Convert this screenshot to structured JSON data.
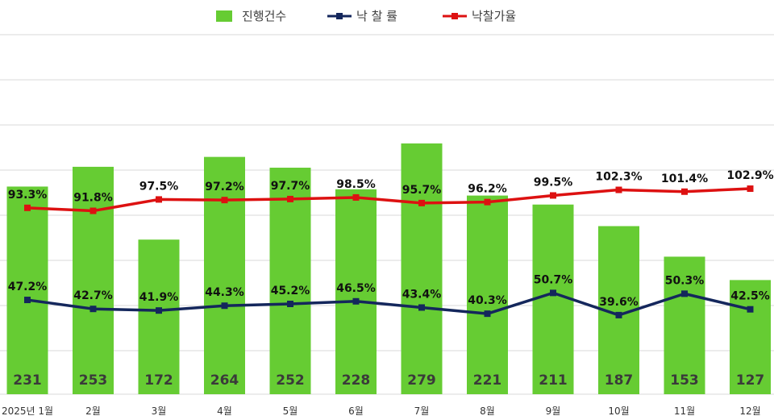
{
  "chart_data": {
    "type": "bar",
    "categories": [
      "2025년 1월",
      "2월",
      "3월",
      "4월",
      "5월",
      "6월",
      "7월",
      "8월",
      "9월",
      "10월",
      "11월",
      "12월"
    ],
    "series": [
      {
        "name": "진행건수",
        "type": "bar",
        "axis": "left",
        "color": "#66CC33",
        "values": [
          231,
          253,
          172,
          264,
          252,
          228,
          279,
          221,
          211,
          187,
          153,
          127
        ],
        "labels": [
          "231",
          "253",
          "172",
          "264",
          "252",
          "228",
          "279",
          "221",
          "211",
          "187",
          "153",
          "127"
        ]
      },
      {
        "name": "낙 찰 률",
        "type": "line",
        "axis": "right",
        "color": "#14275C",
        "values": [
          47.2,
          42.7,
          41.9,
          44.3,
          45.2,
          46.5,
          43.4,
          40.3,
          50.7,
          39.6,
          50.3,
          42.5
        ],
        "labels": [
          "47.2%",
          "42.7%",
          "41.9%",
          "44.3%",
          "45.2%",
          "46.5%",
          "43.4%",
          "40.3%",
          "50.7%",
          "39.6%",
          "50.3%",
          "42.5%"
        ]
      },
      {
        "name": "낙찰가율",
        "type": "line",
        "axis": "right",
        "color": "#DD1111",
        "values": [
          93.3,
          91.8,
          97.5,
          97.2,
          97.7,
          98.5,
          95.7,
          96.2,
          99.5,
          102.3,
          101.4,
          102.9
        ],
        "labels": [
          "93.3%",
          "91.8%",
          "97.5%",
          "97.2%",
          "97.7%",
          "98.5%",
          "95.7%",
          "96.2%",
          "99.5%",
          "102.3%",
          "101.4%",
          "102.9%"
        ]
      }
    ],
    "ylim_left": [
      0,
      400
    ],
    "ylim_right": [
      0,
      180
    ],
    "grid": true,
    "legend_position": "top-center"
  }
}
